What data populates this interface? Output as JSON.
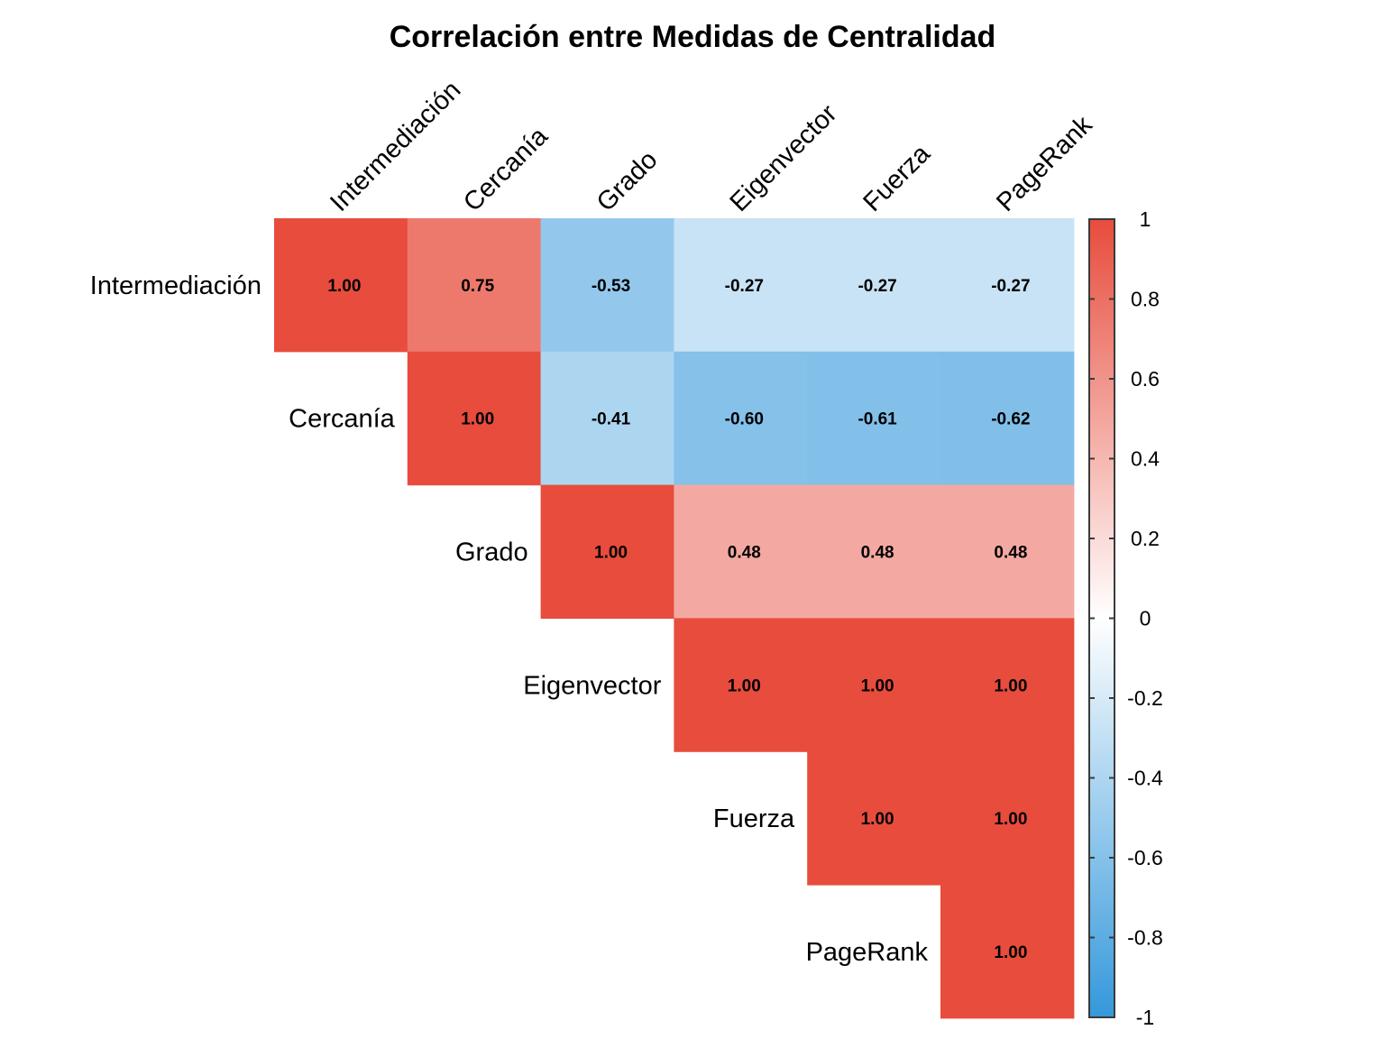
{
  "chart_data": {
    "type": "heatmap",
    "title": "Correlación entre Medidas de Centralidad",
    "variables": [
      "Intermediación",
      "Cercanía",
      "Grado",
      "Eigenvector",
      "Fuerza",
      "PageRank"
    ],
    "layout": "upper-triangle",
    "matrix": [
      [
        1.0,
        0.75,
        -0.53,
        -0.27,
        -0.27,
        -0.27
      ],
      [
        null,
        1.0,
        -0.41,
        -0.6,
        -0.61,
        -0.62
      ],
      [
        null,
        null,
        1.0,
        0.48,
        0.48,
        0.48
      ],
      [
        null,
        null,
        null,
        1.0,
        1.0,
        1.0
      ],
      [
        null,
        null,
        null,
        null,
        1.0,
        1.0
      ],
      [
        null,
        null,
        null,
        null,
        null,
        1.0
      ]
    ],
    "value_labels": [
      [
        "1.00",
        "0.75",
        "-0.53",
        "-0.27",
        "-0.27",
        "-0.27"
      ],
      [
        null,
        "1.00",
        "-0.41",
        "-0.60",
        "-0.61",
        "-0.62"
      ],
      [
        null,
        null,
        "1.00",
        "0.48",
        "0.48",
        "0.48"
      ],
      [
        null,
        null,
        null,
        "1.00",
        "1.00",
        "1.00"
      ],
      [
        null,
        null,
        null,
        null,
        "1.00",
        "1.00"
      ],
      [
        null,
        null,
        null,
        null,
        null,
        "1.00"
      ]
    ],
    "colorbar": {
      "range": [
        -1,
        1
      ],
      "ticks": [
        1,
        0.8,
        0.6,
        0.4,
        0.2,
        0,
        -0.2,
        -0.4,
        -0.6,
        -0.8,
        -1
      ],
      "tick_labels": [
        "1",
        "0.8",
        "0.6",
        "0.4",
        "0.2",
        "0",
        "-0.2",
        "-0.4",
        "-0.6",
        "-0.8",
        "-1"
      ],
      "colors": {
        "low": "#3498db",
        "mid": "#ffffff",
        "high": "#e74c3c"
      }
    }
  }
}
